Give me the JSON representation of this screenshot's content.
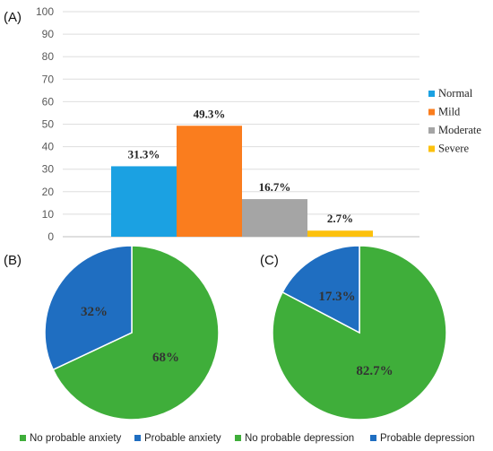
{
  "chart_data": [
    {
      "type": "bar",
      "panel_label": "(A)",
      "categories": [
        "Normal",
        "Mild",
        "Moderate",
        "Severe"
      ],
      "values": [
        31.3,
        49.3,
        16.7,
        2.7
      ],
      "data_labels": [
        "31.3%",
        "49.3%",
        "16.7%",
        "2.7%"
      ],
      "colors": [
        "#1ba1e2",
        "#fa7d1e",
        "#a5a5a5",
        "#fcc10d"
      ],
      "ylim": [
        0,
        100
      ],
      "yticks": [
        "0",
        "10",
        "20",
        "30",
        "40",
        "50",
        "60",
        "70",
        "80",
        "90",
        "100"
      ],
      "grid": true,
      "legend": "right"
    },
    {
      "type": "pie",
      "panel_label": "(B)",
      "slices": [
        {
          "name": "No probable anxiety",
          "value": 68,
          "label": "68%",
          "color": "#3fae3a"
        },
        {
          "name": "Probable anxiety",
          "value": 32,
          "label": "32%",
          "color": "#1f6ec1"
        }
      ]
    },
    {
      "type": "pie",
      "panel_label": "(C)",
      "slices": [
        {
          "name": "No probable depression",
          "value": 82.7,
          "label": "82.7%",
          "color": "#3fae3a"
        },
        {
          "name": "Probable depression",
          "value": 17.3,
          "label": "17.3%",
          "color": "#1f6ec1"
        }
      ]
    }
  ],
  "bottom_legend": [
    {
      "label": "No probable anxiety",
      "color": "#3fae3a"
    },
    {
      "label": "Probable anxiety",
      "color": "#1f6ec1"
    },
    {
      "label": "No probable depression",
      "color": "#3fae3a"
    },
    {
      "label": "Probable depression",
      "color": "#1f6ec1"
    }
  ]
}
